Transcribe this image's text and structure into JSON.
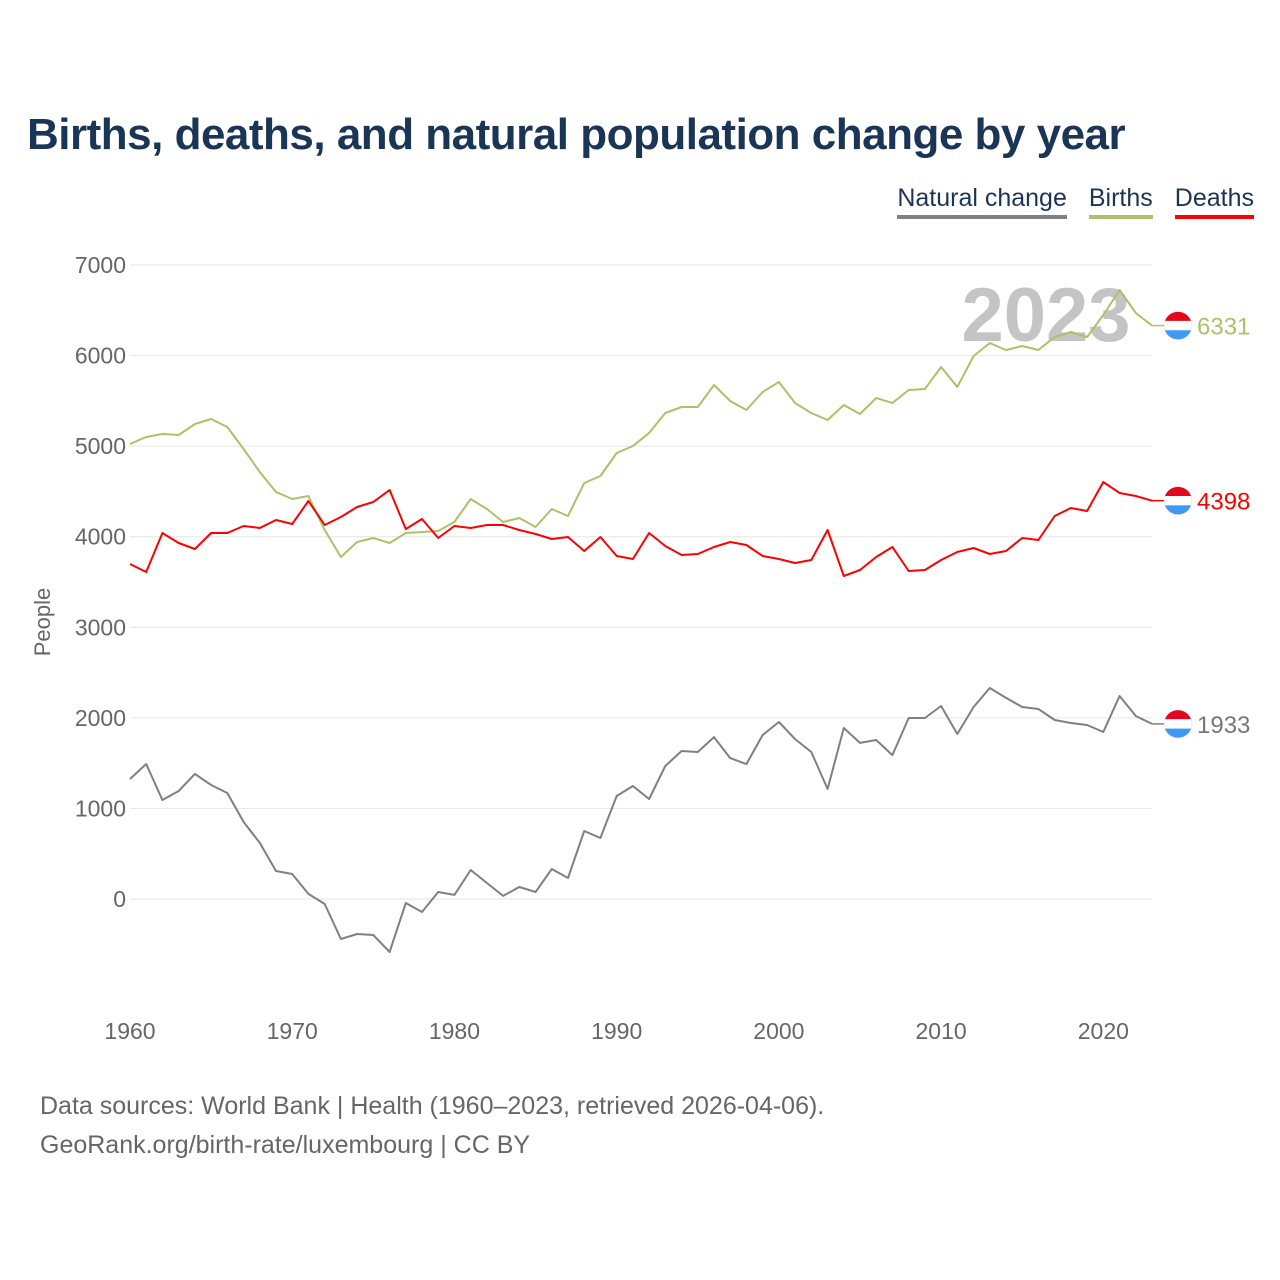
{
  "title": "Births, deaths, and natural population change by year",
  "legend": [
    {
      "label": "Natural change",
      "color": "#808080"
    },
    {
      "label": "Births",
      "color": "#adc168"
    },
    {
      "label": "Deaths",
      "color": "#ff0000"
    }
  ],
  "year_watermark": "2023",
  "footer": {
    "line1": "Data sources: World Bank | Health (1960–2023, retrieved 2026-04-06).",
    "line2": "GeoRank.org/birth-rate/luxembourg | CC BY"
  },
  "chart_data": {
    "type": "line",
    "title": "Births, deaths, and natural population change by year",
    "xlabel": "",
    "ylabel": "People",
    "xlim": [
      1960,
      2023
    ],
    "ylim": [
      -1000,
      7000
    ],
    "x_ticks": [
      "1960",
      "1970",
      "1980",
      "1990",
      "2000",
      "2010",
      "2020"
    ],
    "y_ticks": [
      "0",
      "1000",
      "2000",
      "3000",
      "4000",
      "5000",
      "6000",
      "7000"
    ],
    "grid": true,
    "legend_position": "top-right",
    "x": [
      1960,
      1961,
      1962,
      1963,
      1964,
      1965,
      1966,
      1967,
      1968,
      1969,
      1970,
      1971,
      1972,
      1973,
      1974,
      1975,
      1976,
      1977,
      1978,
      1979,
      1980,
      1981,
      1982,
      1983,
      1984,
      1985,
      1986,
      1987,
      1988,
      1989,
      1990,
      1991,
      1992,
      1993,
      1994,
      1995,
      1996,
      1997,
      1998,
      1999,
      2000,
      2001,
      2002,
      2003,
      2004,
      2005,
      2006,
      2007,
      2008,
      2009,
      2010,
      2011,
      2012,
      2013,
      2014,
      2015,
      2016,
      2017,
      2018,
      2019,
      2020,
      2021,
      2022,
      2023
    ],
    "series": [
      {
        "name": "Natural change",
        "color": "#808080",
        "end_label": "1933",
        "values": [
          1325,
          1491,
          1093,
          1192,
          1381,
          1259,
          1170,
          851,
          619,
          309,
          276,
          56,
          -55,
          -442,
          -386,
          -397,
          -585,
          -44,
          -144,
          77,
          45,
          320,
          177,
          34,
          133,
          77,
          331,
          232,
          751,
          673,
          1137,
          1248,
          1104,
          1468,
          1634,
          1623,
          1788,
          1556,
          1490,
          1811,
          1954,
          1766,
          1623,
          1215,
          1888,
          1723,
          1756,
          1589,
          1999,
          1999,
          2131,
          1822,
          2120,
          2330,
          2220,
          2120,
          2098,
          1976,
          1943,
          1921,
          1844,
          2241,
          2020,
          1933
        ]
      },
      {
        "name": "Births",
        "color": "#adc168",
        "end_label": "6331",
        "values": [
          5024,
          5101,
          5134,
          5123,
          5245,
          5300,
          5211,
          4969,
          4715,
          4494,
          4416,
          4450,
          4074,
          3776,
          3942,
          3986,
          3931,
          4041,
          4052,
          4063,
          4163,
          4416,
          4306,
          4163,
          4207,
          4107,
          4306,
          4229,
          4593,
          4670,
          4924,
          5002,
          5145,
          5366,
          5432,
          5432,
          5675,
          5498,
          5399,
          5598,
          5708,
          5476,
          5366,
          5289,
          5454,
          5355,
          5532,
          5476,
          5620,
          5631,
          5874,
          5653,
          5995,
          6139,
          6062,
          6106,
          6062,
          6205,
          6260,
          6205,
          6448,
          6724,
          6470,
          6331
        ]
      },
      {
        "name": "Deaths",
        "color": "#ff0000",
        "end_label": "4398",
        "values": [
          3699,
          3610,
          4041,
          3931,
          3864,
          4041,
          4041,
          4118,
          4096,
          4185,
          4140,
          4394,
          4129,
          4218,
          4328,
          4383,
          4516,
          4085,
          4196,
          3986,
          4118,
          4096,
          4129,
          4129,
          4074,
          4030,
          3975,
          3997,
          3842,
          3997,
          3787,
          3754,
          4041,
          3898,
          3798,
          3809,
          3887,
          3942,
          3909,
          3787,
          3754,
          3710,
          3743,
          4074,
          3566,
          3632,
          3776,
          3887,
          3621,
          3632,
          3743,
          3831,
          3875,
          3809,
          3842,
          3986,
          3964,
          4229,
          4317,
          4284,
          4604,
          4483,
          4450,
          4398
        ]
      }
    ]
  }
}
